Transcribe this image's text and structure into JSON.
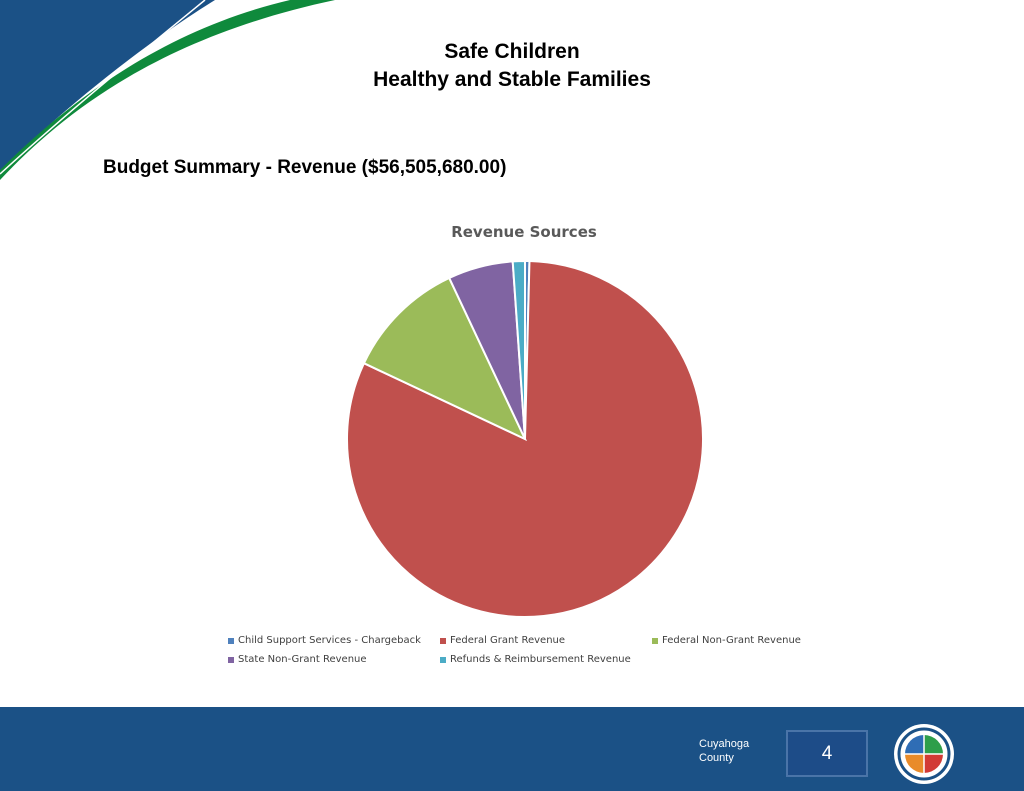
{
  "header": {
    "title_line1": "Safe Children",
    "title_line2": "Healthy and Stable Families"
  },
  "section": {
    "heading": "Budget Summary - Revenue ($56,505,680.00)"
  },
  "colors": {
    "brand_blue": "#1b5186",
    "brand_green": "#0f8a3c"
  },
  "chart_data": {
    "type": "pie",
    "title": "Revenue Sources",
    "start_angle_deg": 0,
    "direction": "clockwise",
    "legend_position": "bottom",
    "slices": [
      {
        "label": "Child Support Services - Chargeback",
        "value": 0.4,
        "color": "#4f81bd"
      },
      {
        "label": "Federal Grant Revenue",
        "value": 81.6,
        "color": "#c0504d"
      },
      {
        "label": "Federal Non-Grant Revenue",
        "value": 11.0,
        "color": "#9bbb59"
      },
      {
        "label": "State Non-Grant Revenue",
        "value": 5.9,
        "color": "#8064a2"
      },
      {
        "label": "Refunds & Reimbursement Revenue",
        "value": 1.1,
        "color": "#4bacc6"
      }
    ]
  },
  "footer": {
    "org_line1": "Cuyahoga",
    "org_line2": "County",
    "page_number": "4"
  }
}
